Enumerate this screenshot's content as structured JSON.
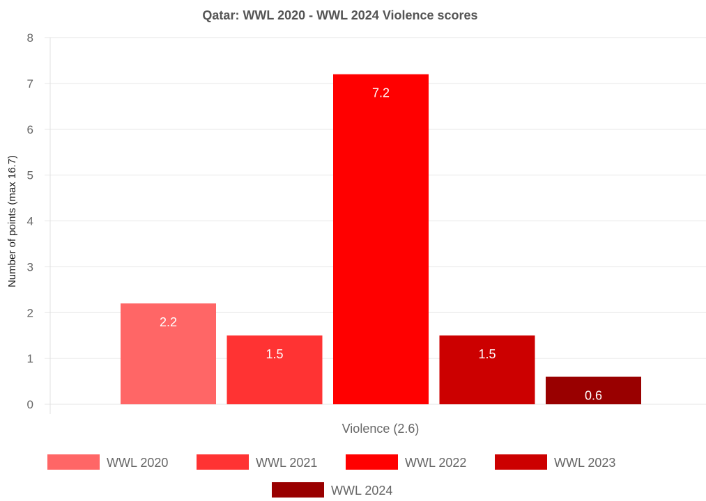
{
  "chart_data": {
    "type": "bar",
    "title": "Qatar: WWL 2020 - WWL 2024 Violence scores",
    "xlabel": "",
    "ylabel": "Number of points (max 16.7)",
    "categories": [
      "Violence (2.6)"
    ],
    "ylim": [
      0,
      8
    ],
    "yticks": [
      "0",
      "1",
      "2",
      "3",
      "4",
      "5",
      "6",
      "7",
      "8"
    ],
    "grid": true,
    "legend_position": "bottom",
    "series": [
      {
        "name": "WWL 2020",
        "values": [
          2.2
        ],
        "label": "2.2",
        "color": "#ff6666"
      },
      {
        "name": "WWL 2021",
        "values": [
          1.5
        ],
        "label": "1.5",
        "color": "#ff3333"
      },
      {
        "name": "WWL 2022",
        "values": [
          7.2
        ],
        "label": "7.2",
        "color": "#ff0000"
      },
      {
        "name": "WWL 2023",
        "values": [
          1.5
        ],
        "label": "1.5",
        "color": "#cc0000"
      },
      {
        "name": "WWL 2024",
        "values": [
          0.6
        ],
        "label": "0.6",
        "color": "#990000"
      }
    ]
  }
}
